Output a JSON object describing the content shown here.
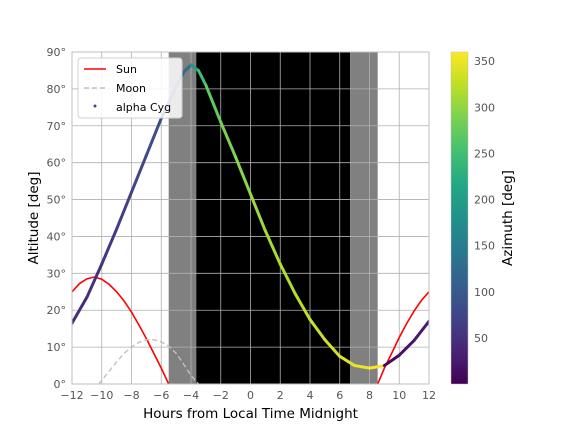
{
  "chart_data": {
    "type": "line",
    "xlabel": "Hours from Local Time Midnight",
    "ylabel": "Altitude [deg]",
    "xlim": [
      -12,
      12
    ],
    "ylim": [
      0,
      90
    ],
    "xticks": [
      -12,
      -10,
      -8,
      -6,
      -4,
      -2,
      0,
      2,
      4,
      6,
      8,
      10,
      12
    ],
    "xtick_labels": [
      "−12",
      "−10",
      "−8",
      "−6",
      "−4",
      "−2",
      "0",
      "2",
      "4",
      "6",
      "8",
      "10",
      "12"
    ],
    "yticks": [
      0,
      10,
      20,
      30,
      40,
      50,
      60,
      70,
      80,
      90
    ],
    "ytick_labels": [
      "0°",
      "10°",
      "20°",
      "30°",
      "40°",
      "50°",
      "60°",
      "70°",
      "80°",
      "90°"
    ],
    "grid": true,
    "legend_position": "upper-left",
    "twilight_bands": [
      {
        "from": -5.5,
        "to": -3.65,
        "shade": "#808080"
      },
      {
        "from": -3.65,
        "to": 6.7,
        "shade": "#000000"
      },
      {
        "from": 6.7,
        "to": 8.55,
        "shade": "#808080"
      }
    ],
    "series": [
      {
        "name": "Sun",
        "style": "solid",
        "color": "#ff0000",
        "points": [
          [
            -12,
            25.0
          ],
          [
            -11.5,
            27.2
          ],
          [
            -11,
            28.5
          ],
          [
            -10.5,
            29.0
          ],
          [
            -10,
            28.4
          ],
          [
            -9.5,
            27.0
          ],
          [
            -9,
            25.0
          ],
          [
            -8.5,
            22.5
          ],
          [
            -8,
            19.5
          ],
          [
            -7.5,
            16.0
          ],
          [
            -7,
            12.3
          ],
          [
            -6.5,
            8.3
          ],
          [
            -6,
            4.3
          ],
          [
            -5.5,
            0.0
          ]
        ],
        "points_late": [
          [
            8.55,
            0.0
          ],
          [
            9,
            4.3
          ],
          [
            9.5,
            8.4
          ],
          [
            10,
            12.6
          ],
          [
            10.5,
            16.4
          ],
          [
            11,
            19.8
          ],
          [
            11.5,
            22.7
          ],
          [
            12,
            25.0
          ]
        ]
      },
      {
        "name": "Moon",
        "style": "dashed",
        "color": "#c0c0c0",
        "points": [
          [
            -10.2,
            0.0
          ],
          [
            -9.5,
            3.5
          ],
          [
            -9,
            6.0
          ],
          [
            -8.5,
            8.3
          ],
          [
            -8,
            10.0
          ],
          [
            -7.5,
            11.3
          ],
          [
            -7,
            12.0
          ],
          [
            -6.5,
            12.0
          ],
          [
            -6,
            11.4
          ],
          [
            -5.5,
            10.3
          ],
          [
            -5,
            8.3
          ],
          [
            -4.5,
            5.4
          ],
          [
            -4,
            2.3
          ],
          [
            -3.5,
            0.0
          ]
        ]
      },
      {
        "name": "alpha Cyg",
        "style": "markers",
        "color": "#3a4a8c",
        "points": [
          [
            -12,
            16.5,
            45
          ],
          [
            -11,
            23.5,
            50
          ],
          [
            -10,
            32.5,
            58
          ],
          [
            -9,
            42.0,
            66
          ],
          [
            -8,
            52.0,
            74
          ],
          [
            -7,
            62.0,
            82
          ],
          [
            -6,
            72.0,
            92
          ],
          [
            -5,
            80.5,
            104
          ],
          [
            -4.5,
            84.5,
            125
          ],
          [
            -4,
            86.5,
            190
          ],
          [
            -3.5,
            85.0,
            250
          ],
          [
            -3,
            81.0,
            272
          ],
          [
            -2,
            71.0,
            288
          ],
          [
            -1,
            61.5,
            297
          ],
          [
            0,
            51.5,
            305
          ],
          [
            1,
            41.5,
            312
          ],
          [
            2,
            32.5,
            318
          ],
          [
            3,
            24.5,
            323
          ],
          [
            4,
            17.5,
            330
          ],
          [
            5,
            12.0,
            337
          ],
          [
            6,
            7.5,
            344
          ],
          [
            7,
            5.0,
            350
          ],
          [
            8,
            4.3,
            358
          ],
          [
            9,
            5.0,
            8
          ],
          [
            10,
            7.8,
            18
          ],
          [
            11,
            11.8,
            27
          ],
          [
            12,
            17.0,
            35
          ]
        ]
      }
    ],
    "colorbar": {
      "label": "Azimuth [deg]",
      "range": [
        0,
        360
      ],
      "ticks": [
        50,
        100,
        150,
        200,
        250,
        300,
        350
      ],
      "tick_labels": [
        "50",
        "100",
        "150",
        "200",
        "250",
        "300",
        "350"
      ]
    }
  }
}
